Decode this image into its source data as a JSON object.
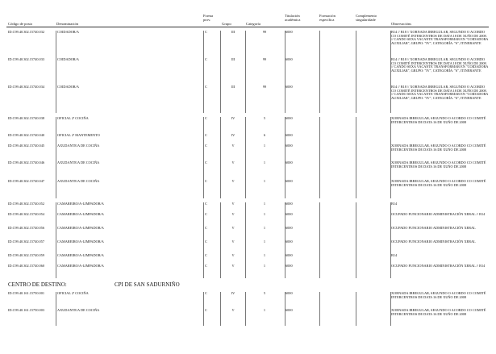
{
  "headers": {
    "codigo": "Código de posto",
    "denominacion": "Denominación",
    "forma": "Forma prov.",
    "grupo": "Grupo",
    "categoria": "Categoría",
    "titulacion": "Titulación académica",
    "formacion": "Formación específica",
    "complemento": "Complemento singularidade",
    "observacions": "Observacións"
  },
  "rows": [
    {
      "codigo": "ID.C99.40.302.15740.032",
      "denominacion": "COIDADOR/A",
      "forma": "C",
      "grupo": "III",
      "categoria": "99",
      "titulacion": "6000",
      "observacions": "B14 // B18 // XORNADA IRREGULAR, SEGUNDO O ACORDO CO COMITÉ INTERCENTROS DE DATA 18 DE XUÑO DE 2008. // CANDO SEXA VACANTE TRANSFORMAR EN \"COIDADORA AUXILIAR\", GRUPO: \"IV\", CATEGORÍA: \"6\", ITINERANTE"
    },
    {
      "codigo": "ID.C99.40.302.15740.033",
      "denominacion": "COIDADOR/A",
      "forma": "C",
      "grupo": "III",
      "categoria": "99",
      "titulacion": "6000",
      "observacions": "B14 // B18 // XORNADA IRREGULAR, SEGUNDO O ACORDO CO COMITÉ INTERCENTROS DE DATA 18 DE XUÑO DE 2008. // CANDO SEXA VACANTE TRANSFORMAR EN \"COIDADORA AUXILIAR\", GRUPO: \"IV\", CATEGORÍA: \"6\", ITINERANTE"
    },
    {
      "codigo": "ID.C99.40.302.15740.034",
      "denominacion": "COIDADOR/A",
      "forma": "C",
      "grupo": "III",
      "categoria": "99",
      "titulacion": "6000",
      "observacions": "B14 // B18 // XORNADA IRREGULAR, SEGUNDO O ACORDO CO COMITÉ INTERCENTROS DE DATA 18 DE XUÑO DE 2008. // CANDO SEXA VACANTE TRANSFORMAR EN \"COIDADORA AUXILIAR\", GRUPO: \"IV\", CATEGORÍA: \"6\", ITINERANTE"
    },
    {
      "codigo": "ID.C99.40.302.15740.038",
      "denominacion": "OFICIAL 2ª COCIÑA",
      "forma": "C",
      "grupo": "IV",
      "categoria": "5",
      "titulacion": "6000",
      "observacions": "XORNADA IRREGULAR, SEGUNDO O ACORDO CO COMITÉ INTERCENTROS DE DATA 16 DE XUÑO DE 2008"
    },
    {
      "codigo": "ID.C99.40.302.15740.040",
      "denominacion": "OFICIAL 2ª MANTEMENTO",
      "forma": "C",
      "grupo": "IV",
      "categoria": "6",
      "titulacion": "6000",
      "observacions": ""
    },
    {
      "codigo": "ID.C99.40.302.15740.045",
      "denominacion": "AXUDANTE/A DE COCIÑA",
      "forma": "C",
      "grupo": "V",
      "categoria": "1",
      "titulacion": "6000",
      "observacions": "XORNADA IRREGULAR, SEGUNDO O ACORDO CO COMITÉ INTERCENTROS DE DATA 16 DE XUÑO DE 2008"
    },
    {
      "codigo": "ID.C99.40.302.15740.046",
      "denominacion": "AXUDANTE/A DE COCIÑA",
      "forma": "C",
      "grupo": "V",
      "categoria": "1",
      "titulacion": "6000",
      "observacions": "XORNADA IRREGULAR, SEGUNDO O ACORDO CO COMITÉ INTERCENTROS DE DATA 16 DE XUÑO DE 2008"
    },
    {
      "codigo": "ID.C99.40.302.15740.047",
      "denominacion": "AXUDANTE/A DE COCIÑA",
      "forma": "C",
      "grupo": "V",
      "categoria": "1",
      "titulacion": "6000",
      "observacions": "XORNADA IRREGULAR, SEGUNDO O ACORDO CO COMITÉ INTERCENTROS DE DATA 16 DE XUÑO DE 2008"
    },
    {
      "codigo": "ID.C99.40.302.15740.052",
      "denominacion": "CAMAREIRO/A-LIMPADOR/A",
      "forma": "C",
      "grupo": "V",
      "categoria": "1",
      "titulacion": "6000",
      "observacions": "B14"
    },
    {
      "codigo": "ID.C99.40.302.15740.054",
      "denominacion": "CAMAREIRO/A-LIMPADOR/A",
      "forma": "C",
      "grupo": "V",
      "categoria": "1",
      "titulacion": "6000",
      "observacions": "OCUPADO FUNCIONARIO ADMINISTRACIÓN XERAL // B14"
    },
    {
      "codigo": "ID.C99.40.302.15740.056",
      "denominacion": "CAMAREIRO/A-LIMPADOR/A",
      "forma": "C",
      "grupo": "V",
      "categoria": "1",
      "titulacion": "6000",
      "observacions": "OCUPADO FUNCIONARIO ADMINISTRACIÓN XERAL"
    },
    {
      "codigo": "ID.C99.40.302.15740.057",
      "denominacion": "CAMAREIRO/A-LIMPADOR/A",
      "forma": "C",
      "grupo": "V",
      "categoria": "1",
      "titulacion": "6000",
      "observacions": "OCUPADO FUNCIONARIO ADMINISTRACIÓN XERAL"
    },
    {
      "codigo": "ID.C99.40.302.15740.059",
      "denominacion": "CAMAREIRO/A-LIMPADOR/A",
      "forma": "C",
      "grupo": "V",
      "categoria": "1",
      "titulacion": "6000",
      "observacions": "B14"
    },
    {
      "codigo": "ID.C99.40.302.15740.060",
      "denominacion": "CAMAREIRO/A-LIMPADOR/A",
      "forma": "C",
      "grupo": "V",
      "categoria": "1",
      "titulacion": "6000",
      "observacions": "OCUPADO FUNCIONARIO ADMINISTRACIÓN XERAL // B14"
    },
    {
      "codigo": "ID.C99.40.161.15750.001",
      "denominacion": "OFICIAL 2ª COCIÑA",
      "forma": "C",
      "grupo": "IV",
      "categoria": "5",
      "titulacion": "6000",
      "observacions": "XORNADA IRREGULAR, SEGUNDO O ACORDO CO COMITÉ INTERCENTROS DE DATA 16 DE XUÑO DE 2008"
    },
    {
      "codigo": "ID.C99.40.161.15750.003",
      "denominacion": "AXUDANTE/A DE COCIÑA",
      "forma": "C",
      "grupo": "V",
      "categoria": "1",
      "titulacion": "6000",
      "observacions": "XORNADA IRREGULAR, SEGUNDO O ACORDO CO COMITÉ INTERCENTROS DE DATA 16 DE XUÑO DE 2008"
    }
  ],
  "section": {
    "label": "CENTRO DE DESTINO:",
    "name": "CPI DE SAN SADURNIÑO"
  }
}
